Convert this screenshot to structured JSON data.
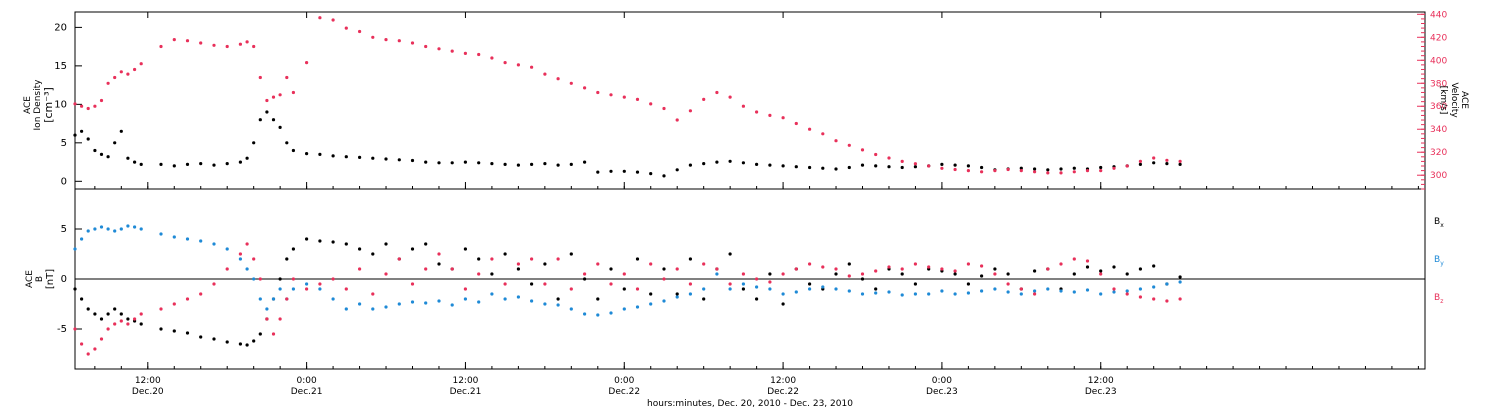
{
  "chart_data": [
    {
      "type": "scatter",
      "panel": "top",
      "ylabel_left": [
        "ACE",
        "Ion Density",
        "[cm⁻³]"
      ],
      "ylabel_right": [
        "ACE",
        "Velocity",
        "[km/s]"
      ],
      "ylim_left": [
        -1,
        22
      ],
      "yticks_left": [
        0,
        5,
        10,
        15,
        20
      ],
      "ylim_right": [
        288,
        442
      ],
      "yticks_right": [
        300,
        320,
        340,
        360,
        380,
        400,
        420,
        440
      ],
      "series": [
        {
          "axis": "left",
          "color": "#000000",
          "x": [
            6.5,
            7,
            7.5,
            8,
            8.5,
            9,
            9.5,
            10,
            10.5,
            11,
            11.5,
            13,
            14,
            15,
            16,
            17,
            18,
            19,
            19.5,
            20,
            20.5,
            21,
            21.5,
            22,
            22.5,
            23,
            24,
            25,
            26,
            27,
            28,
            29,
            30,
            31,
            32,
            33,
            34,
            35,
            36,
            37,
            38,
            39,
            40,
            41,
            42,
            43,
            44,
            45,
            46,
            47,
            48,
            49,
            50,
            51,
            52,
            53,
            54,
            55,
            56,
            57,
            58,
            59,
            60,
            61,
            62,
            63,
            64,
            65,
            66,
            67,
            68,
            69,
            70,
            71,
            72,
            73,
            74,
            75,
            76,
            77,
            78,
            79,
            80,
            81,
            82,
            83,
            84,
            85,
            86,
            87,
            88,
            89,
            90
          ],
          "y": [
            6,
            6.5,
            5.5,
            4,
            3.5,
            3.2,
            5,
            6.5,
            3,
            2.5,
            2.2,
            2.2,
            2,
            2.2,
            2.3,
            2.1,
            2.3,
            2.5,
            3,
            5,
            8,
            9,
            8,
            7,
            5,
            4,
            3.6,
            3.5,
            3.3,
            3.2,
            3.1,
            3,
            2.9,
            2.8,
            2.7,
            2.5,
            2.4,
            2.4,
            2.5,
            2.4,
            2.3,
            2.2,
            2.1,
            2.2,
            2.3,
            2.1,
            2.2,
            2.5,
            1.2,
            1.3,
            1.3,
            1.2,
            1,
            0.7,
            1.5,
            2.1,
            2.3,
            2.5,
            2.6,
            2.4,
            2.2,
            2.1,
            2,
            1.9,
            1.8,
            1.7,
            1.6,
            1.8,
            2.1,
            2,
            1.9,
            1.8,
            1.9,
            2,
            2.2,
            2.1,
            2,
            1.8,
            1.5,
            1.6,
            1.7,
            1.6,
            1.5,
            1.6,
            1.7,
            1.6,
            1.8,
            1.9,
            2,
            2.2,
            2.4,
            2.3,
            2.2
          ]
        },
        {
          "axis": "right",
          "color": "#e8305a",
          "x": [
            6.5,
            7,
            7.5,
            8,
            8.5,
            9,
            9.5,
            10,
            10.5,
            11,
            11.5,
            13,
            14,
            15,
            16,
            17,
            18,
            19,
            19.5,
            20,
            20.5,
            21,
            21.5,
            22,
            22.5,
            23,
            24,
            25,
            26,
            27,
            28,
            29,
            30,
            31,
            32,
            33,
            34,
            35,
            36,
            37,
            38,
            39,
            40,
            41,
            42,
            43,
            44,
            45,
            46,
            47,
            48,
            49,
            50,
            51,
            52,
            53,
            54,
            55,
            56,
            57,
            58,
            59,
            60,
            61,
            62,
            63,
            64,
            65,
            66,
            67,
            68,
            69,
            70,
            71,
            72,
            73,
            74,
            75,
            76,
            77,
            78,
            79,
            80,
            81,
            82,
            83,
            84,
            85,
            86,
            87,
            88,
            89,
            90
          ],
          "y": [
            362,
            360,
            358,
            360,
            365,
            380,
            385,
            390,
            388,
            392,
            397,
            412,
            418,
            417,
            415,
            413,
            412,
            414,
            416,
            412,
            385,
            365,
            368,
            370,
            385,
            372,
            398,
            437,
            435,
            428,
            425,
            420,
            418,
            417,
            415,
            412,
            410,
            408,
            406,
            405,
            402,
            398,
            396,
            394,
            388,
            384,
            380,
            376,
            372,
            370,
            368,
            366,
            362,
            358,
            348,
            356,
            366,
            372,
            368,
            360,
            355,
            352,
            350,
            345,
            340,
            336,
            330,
            326,
            322,
            318,
            315,
            312,
            310,
            308,
            306,
            305,
            304,
            303,
            304,
            305,
            304,
            303,
            302,
            302,
            303,
            304,
            304,
            306,
            308,
            312,
            315,
            313,
            312
          ]
        }
      ]
    },
    {
      "type": "scatter",
      "panel": "bottom",
      "ylabel": [
        "ACE",
        "B",
        "[nT]"
      ],
      "ylim": [
        -9,
        9
      ],
      "yticks": [
        -5,
        0,
        5
      ],
      "zero_line": true,
      "legend_placement": "right",
      "x": [
        6.5,
        7,
        7.5,
        8,
        8.5,
        9,
        9.5,
        10,
        10.5,
        11,
        11.5,
        13,
        14,
        15,
        16,
        17,
        18,
        19,
        19.5,
        20,
        20.5,
        21,
        21.5,
        22,
        22.5,
        23,
        24,
        25,
        26,
        27,
        28,
        29,
        30,
        31,
        32,
        33,
        34,
        35,
        36,
        37,
        38,
        39,
        40,
        41,
        42,
        43,
        44,
        45,
        46,
        47,
        48,
        49,
        50,
        51,
        52,
        53,
        54,
        55,
        56,
        57,
        58,
        59,
        60,
        61,
        62,
        63,
        64,
        65,
        66,
        67,
        68,
        69,
        70,
        71,
        72,
        73,
        74,
        75,
        76,
        77,
        78,
        79,
        80,
        81,
        82,
        83,
        84,
        85,
        86,
        87,
        88,
        89,
        90
      ],
      "series": [
        {
          "name": "B",
          "subscript": "x",
          "color": "#000000",
          "y": [
            -1,
            -2,
            -3,
            -3.5,
            -4,
            -3.5,
            -3,
            -3.5,
            -4,
            -4.2,
            -4.5,
            -5,
            -5.2,
            -5.4,
            -5.8,
            -6,
            -6.3,
            -6.5,
            -6.6,
            -6.2,
            -5.5,
            -4,
            -2,
            0,
            2,
            3,
            4,
            3.8,
            3.7,
            3.5,
            3,
            2.5,
            3.5,
            2,
            3,
            3.5,
            1.5,
            1,
            3,
            2,
            0.5,
            2.5,
            1,
            -0.5,
            1.5,
            -2,
            2.5,
            0,
            -2,
            1,
            -1,
            2,
            -1.5,
            1,
            -1.5,
            2,
            -2,
            1,
            2.5,
            -1,
            -2,
            0.5,
            -2.5,
            1,
            -0.5,
            -1,
            0.5,
            1.5,
            0,
            -1,
            1,
            0.5,
            -0.5,
            1,
            0.8,
            0.5,
            -0.5,
            0.3,
            1,
            0.5,
            -1,
            0.8,
            1,
            -1,
            0.5,
            1.2,
            0.8,
            1.2,
            0.5,
            1,
            1.3,
            -0.5,
            0.2
          ]
        },
        {
          "name": "B",
          "subscript": "y",
          "color": "#1f8ad6",
          "y": [
            3,
            4,
            4.8,
            5,
            5.2,
            5,
            4.8,
            5,
            5.3,
            5.2,
            5,
            4.5,
            4.2,
            4,
            3.8,
            3.5,
            3,
            2,
            1,
            0,
            -2,
            -3,
            -2,
            -1,
            -2,
            -1,
            -0.5,
            -1,
            -2,
            -3,
            -2.5,
            -3,
            -2.8,
            -2.5,
            -2.3,
            -2.4,
            -2.2,
            -2.6,
            -2,
            -2.3,
            -1.5,
            -2,
            -1.8,
            -2.2,
            -2.5,
            -2.6,
            -3,
            -3.5,
            -3.6,
            -3.4,
            -3,
            -2.8,
            -2.5,
            -2.2,
            -1.8,
            -1.5,
            -1,
            0.5,
            -1,
            -0.5,
            -0.8,
            -1,
            -1.5,
            -1.3,
            -1,
            -0.8,
            -1,
            -1.2,
            -1.5,
            -1.4,
            -1.3,
            -1.6,
            -1.5,
            -1.5,
            -1.2,
            -1.5,
            -1.4,
            -1.2,
            -1,
            -1.3,
            -1.5,
            -1.2,
            -1,
            -1.2,
            -1.3,
            -1.1,
            -1.5,
            -1.3,
            -1.2,
            -1,
            -0.8,
            -0.5,
            -0.3
          ]
        },
        {
          "name": "B",
          "subscript": "z",
          "color": "#e8305a",
          "y": [
            -5,
            -6.5,
            -7.5,
            -7,
            -6,
            -5,
            -4.5,
            -4.2,
            -4.5,
            -4,
            -3.5,
            -3,
            -2.5,
            -2,
            -1.5,
            -0.5,
            1,
            2.5,
            3.5,
            2,
            0,
            -4,
            -5.5,
            -4,
            -2,
            0,
            -1,
            -0.5,
            0,
            -1,
            1,
            -1.5,
            0.5,
            2,
            -0.5,
            1,
            2.5,
            1,
            -1,
            0.5,
            2,
            -0.5,
            1.5,
            2,
            -0.5,
            2,
            -1,
            0.5,
            1.5,
            -0.5,
            0.5,
            -1,
            1.5,
            0,
            1,
            -0.5,
            1.5,
            1,
            -0.5,
            0.5,
            0,
            -0.3,
            0.5,
            1,
            1.5,
            1.2,
            1,
            0.3,
            0.5,
            0.8,
            1.2,
            1,
            1.5,
            1.2,
            1,
            0.8,
            1.5,
            1.3,
            0.5,
            -0.5,
            -1,
            -1.5,
            1,
            1.5,
            2,
            1.8,
            0.5,
            -1,
            -1.5,
            -1.8,
            -2,
            -2.2,
            -2
          ]
        }
      ]
    },
    {
      "type": "axis",
      "x_unit": "hours since Dec.20 00:00",
      "xlim": [
        6.5,
        108.5
      ],
      "ticks": [
        {
          "x": 12,
          "time": "12:00",
          "date": "Dec.20"
        },
        {
          "x": 24,
          "time": "0:00",
          "date": "Dec.21"
        },
        {
          "x": 36,
          "time": "12:00",
          "date": "Dec.21"
        },
        {
          "x": 48,
          "time": "0:00",
          "date": "Dec.22"
        },
        {
          "x": 60,
          "time": "12:00",
          "date": "Dec.22"
        },
        {
          "x": 72,
          "time": "0:00",
          "date": "Dec.23"
        },
        {
          "x": 84,
          "time": "12:00",
          "date": "Dec.23"
        }
      ],
      "xlabel": "hours:minutes, Dec. 20, 2010 - Dec. 23, 2010"
    }
  ]
}
